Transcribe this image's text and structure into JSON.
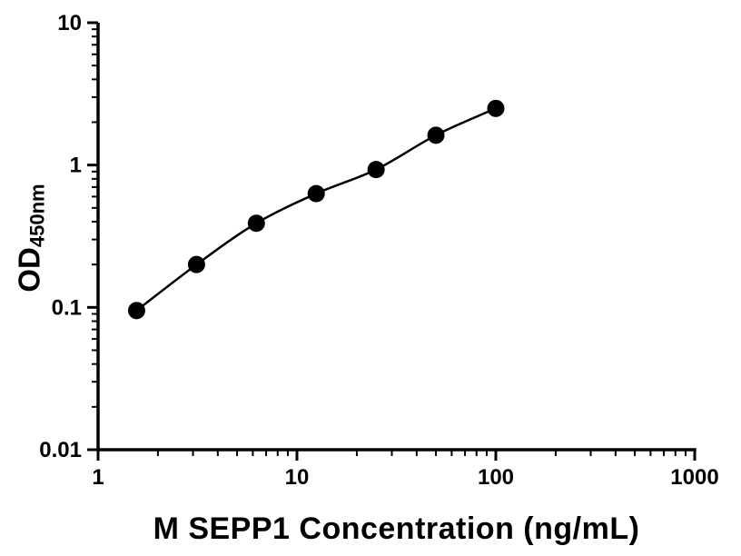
{
  "figure": {
    "background": "#ffffff"
  },
  "chart_data": {
    "type": "scatter",
    "series_name": "M SEPP1 standard curve",
    "x": [
      1.5625,
      3.125,
      6.25,
      12.5,
      25,
      50,
      100
    ],
    "y": [
      0.095,
      0.2,
      0.39,
      0.63,
      0.93,
      1.62,
      2.5
    ],
    "title": "",
    "xlabel": "M SEPP1 Concentration (ng/mL)",
    "ylabel_main": "OD",
    "ylabel_sub": "450nm",
    "x_scale": "log",
    "y_scale": "log",
    "xlim": [
      1,
      1000
    ],
    "ylim": [
      0.01,
      10
    ],
    "x_ticks": [
      1,
      10,
      100,
      1000
    ],
    "x_tick_labels": [
      "1",
      "10",
      "100",
      "1000"
    ],
    "y_ticks": [
      0.01,
      0.1,
      1,
      10
    ],
    "y_tick_labels": [
      "0.01",
      "0.1",
      "1",
      "10"
    ],
    "grid": false,
    "legend": "none",
    "marker_color": "#000000",
    "line_color": "#000000",
    "axis_color": "#000000"
  }
}
